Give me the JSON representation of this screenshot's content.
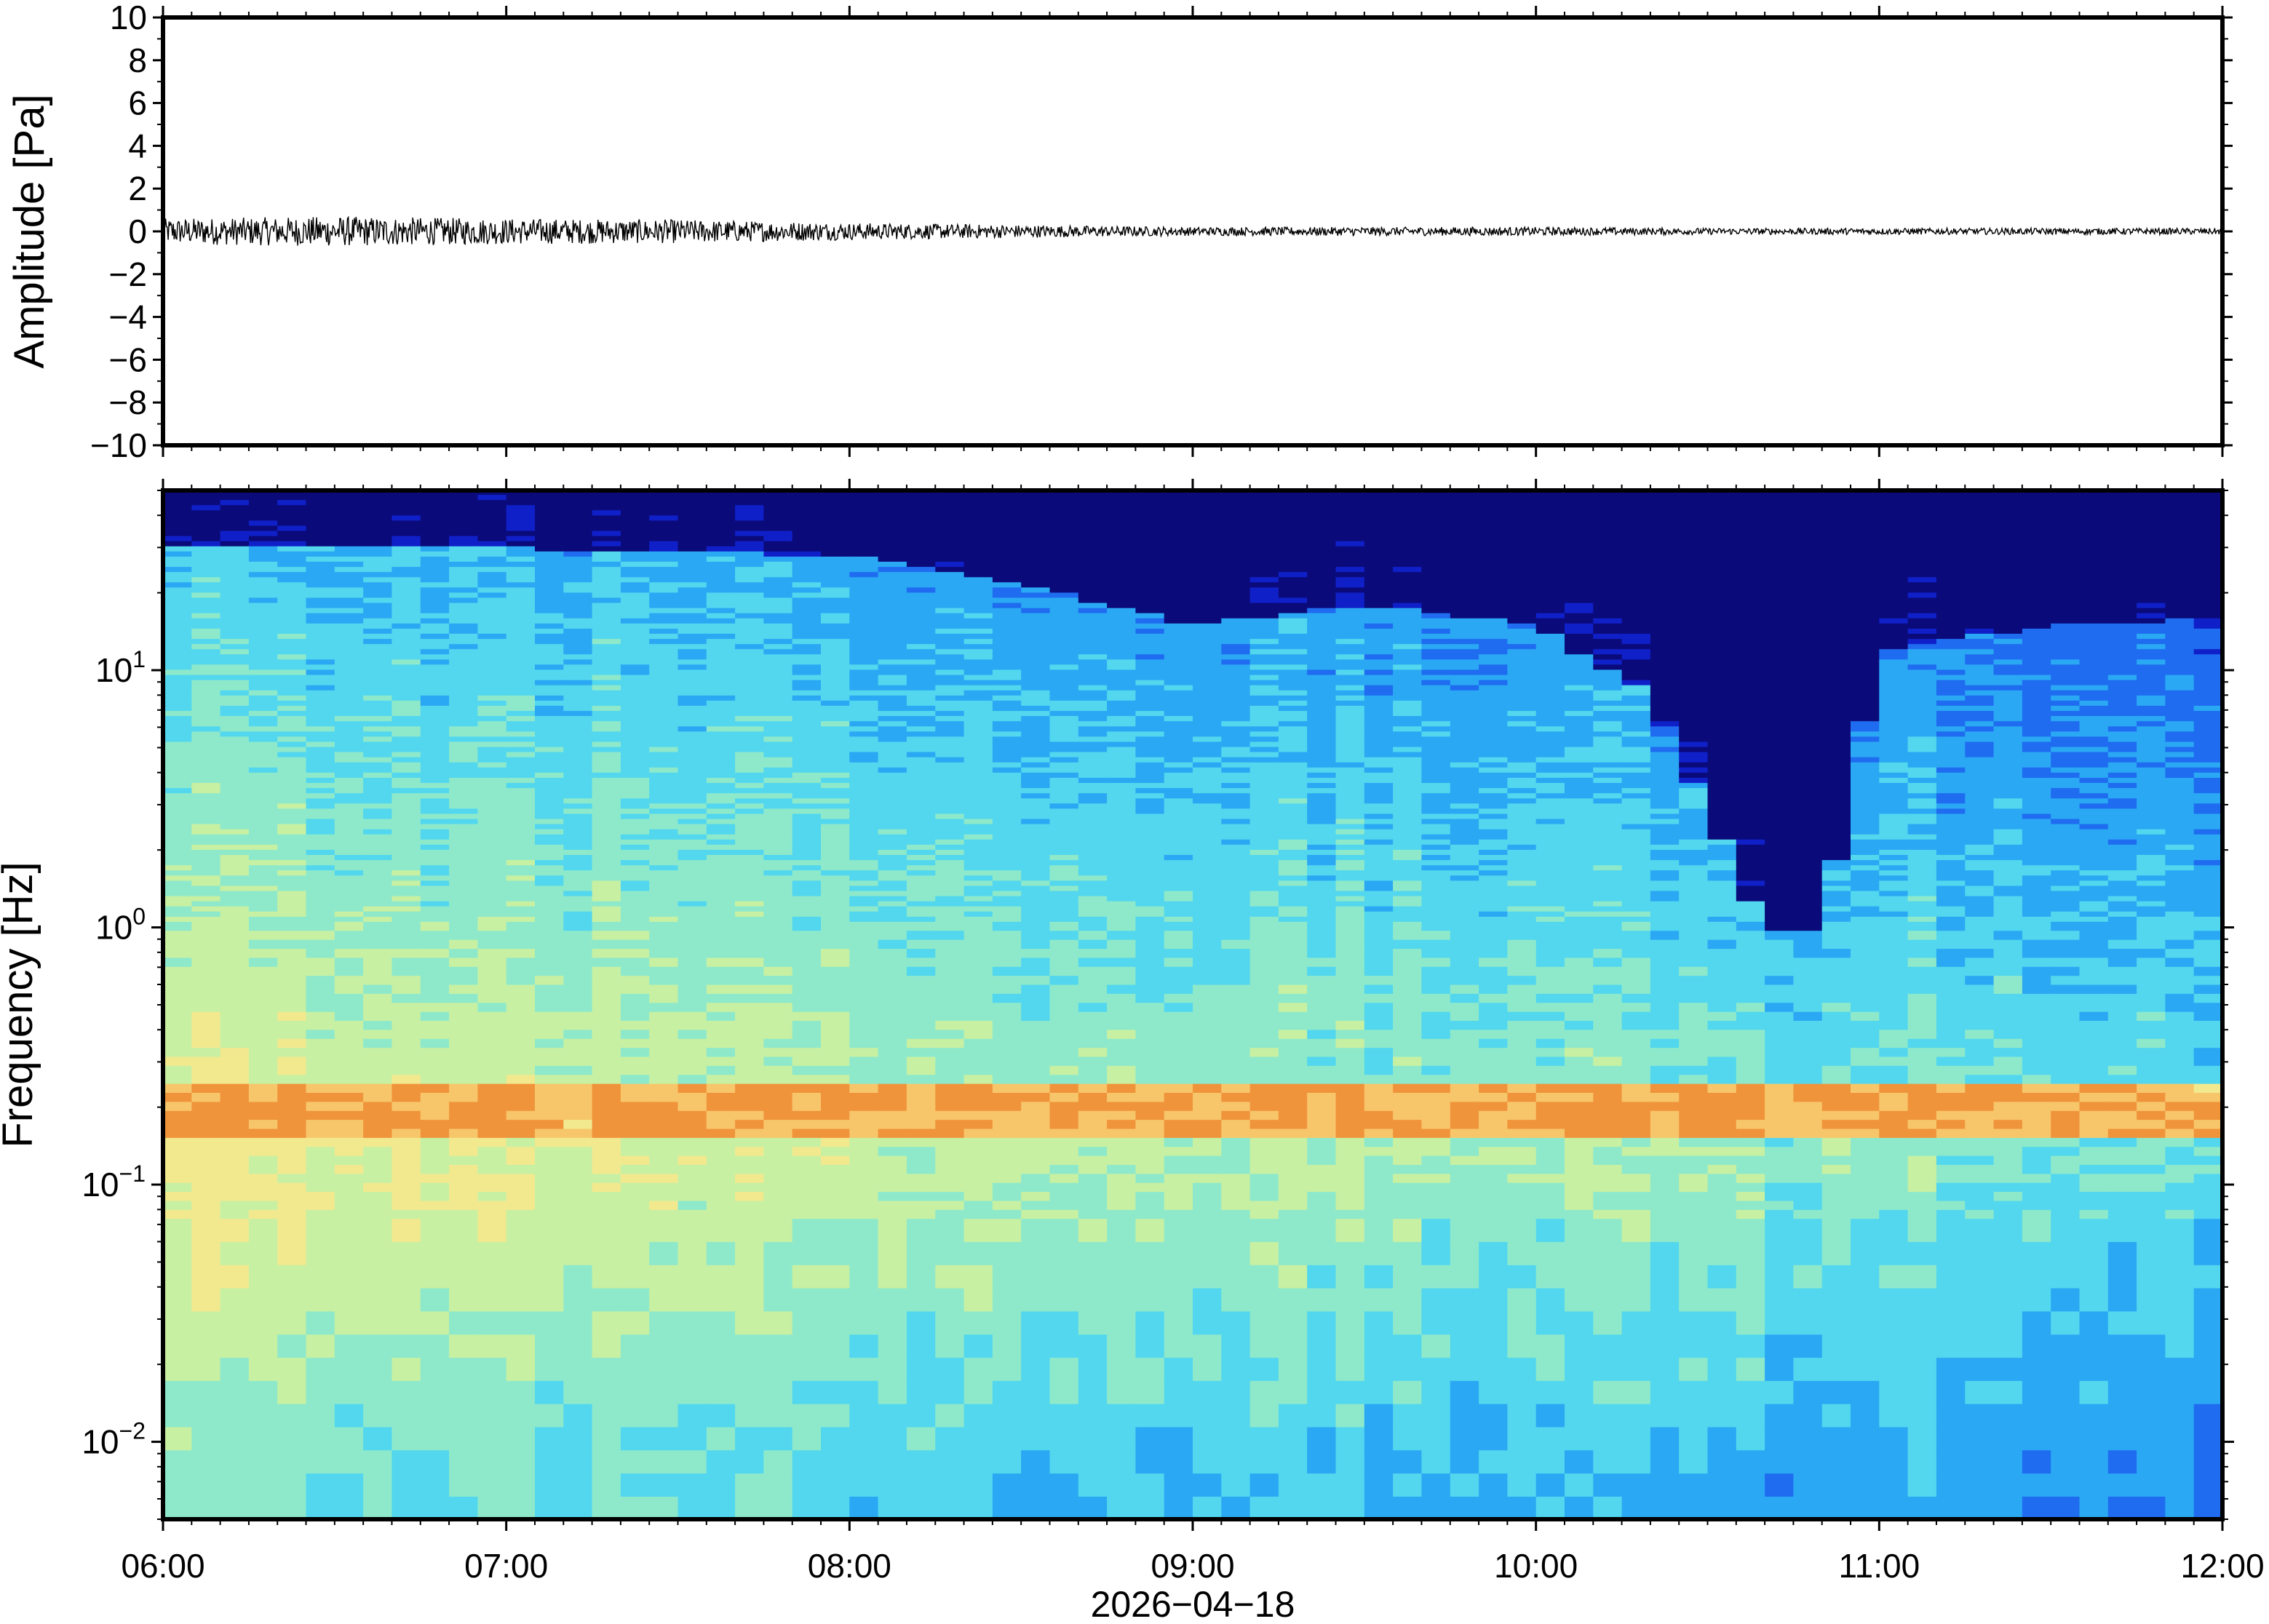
{
  "chart_data": [
    {
      "type": "line",
      "panel": "waveform",
      "ylabel": "Amplitude [Pa]",
      "ylim": [
        -10,
        10
      ],
      "yticks": [
        10,
        8,
        6,
        4,
        2,
        0,
        -2,
        -4,
        -6,
        -8,
        -10
      ],
      "ytick_labels": [
        "10",
        "8",
        "6",
        "4",
        "2",
        "0",
        "−2",
        "−4",
        "−6",
        "−8",
        "−10"
      ],
      "xlim": [
        "06:00",
        "12:00"
      ],
      "envelope_time": [
        "06:00",
        "06:30",
        "07:00",
        "07:30",
        "08:00",
        "08:30",
        "09:00",
        "09:30",
        "10:00",
        "10:30",
        "11:00",
        "11:30",
        "12:00"
      ],
      "envelope_amplitude": [
        0.6,
        0.7,
        0.6,
        0.55,
        0.4,
        0.3,
        0.2,
        0.2,
        0.2,
        0.15,
        0.15,
        0.15,
        0.15
      ],
      "line_color": "#000000"
    },
    {
      "type": "heatmap",
      "panel": "spectrogram",
      "ylabel": "Frequency [Hz]",
      "yscale": "log",
      "ylim": [
        0.005,
        50
      ],
      "yticks": [
        0.01,
        0.1,
        1,
        10
      ],
      "ytick_labels": [
        {
          "base": "10",
          "exp": "−2"
        },
        {
          "base": "10",
          "exp": "−1"
        },
        {
          "base": "10",
          "exp": "0"
        },
        {
          "base": "10",
          "exp": "1"
        }
      ],
      "xlabel": "2026−04−18",
      "xticks": [
        "06:00",
        "07:00",
        "08:00",
        "09:00",
        "10:00",
        "11:00",
        "12:00"
      ],
      "colormap": [
        "#0a0a7a",
        "#1020c8",
        "#1f6cf0",
        "#2aa8f4",
        "#52d7ee",
        "#8ee9cb",
        "#c7f0a2",
        "#f2e98f",
        "#f7c66a",
        "#f0943c"
      ],
      "band_peak_frequency_hz": [
        0.15,
        0.25
      ],
      "cutoff_frequency_profile": {
        "time": [
          "06:00",
          "07:00",
          "08:00",
          "08:30",
          "09:00",
          "09:30",
          "10:00",
          "10:20",
          "10:40",
          "10:50",
          "11:00",
          "11:30",
          "12:00"
        ],
        "frequency_hz": [
          30,
          30,
          28,
          22,
          15,
          18,
          15,
          8,
          1.0,
          1.0,
          12,
          15,
          16
        ]
      }
    }
  ]
}
